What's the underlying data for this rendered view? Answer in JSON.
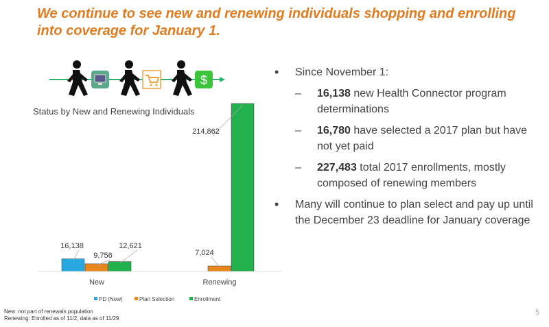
{
  "title": "We continue to see new and renewing individuals shopping and enrolling into coverage for January 1.",
  "bullets": {
    "b1": "Since November 1:",
    "subs": [
      {
        "bold": "16,138",
        "text": " new Health Connector program determinations"
      },
      {
        "bold": "16,780",
        "text": " have selected a 2017 plan but have not yet paid"
      },
      {
        "bold": "227,483",
        "text": " total 2017 enrollments, mostly composed of renewing members"
      }
    ],
    "b2": "Many will continue to plan select and pay up until the December 23 deadline for January coverage"
  },
  "footnotes": [
    "New: not part of renewals population",
    "Renewing: Enrolled as of 11/2, data as of 11/29"
  ],
  "page_number": "5",
  "icons": [
    "walking-person-icon",
    "computer-monitor-icon",
    "shopping-cart-icon",
    "dollar-icon"
  ],
  "chart_data": {
    "type": "bar",
    "title": "Status by New and Renewing Individuals",
    "categories": [
      "New",
      "Renewing"
    ],
    "series": [
      {
        "name": "PD (New)",
        "values": [
          16138,
          null
        ],
        "labels": [
          "16,138",
          ""
        ],
        "color": "#29a8e0"
      },
      {
        "name": "Plan Selection",
        "values": [
          9756,
          7024
        ],
        "labels": [
          "9,756",
          "7,024"
        ],
        "color": "#e8871e"
      },
      {
        "name": "Enrollment",
        "values": [
          12621,
          214862
        ],
        "labels": [
          "12,621",
          "214,862"
        ],
        "color": "#22b14c"
      }
    ],
    "ylim": [
      0,
      214862
    ],
    "grid": false,
    "legend": "bottom"
  }
}
